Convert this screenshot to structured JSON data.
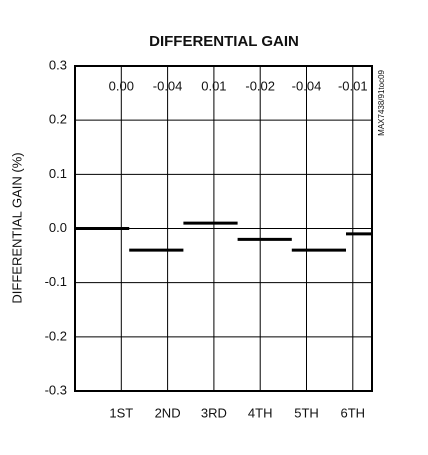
{
  "chart_data": {
    "type": "step",
    "title": "DIFFERENTIAL GAIN",
    "y_label": "DIFFERENTIAL GAIN (%)",
    "note": "MAX7438/91toc09",
    "categories": [
      "1ST",
      "2ND",
      "3RD",
      "4TH",
      "5TH",
      "6TH"
    ],
    "values": [
      0,
      -0.04,
      0.01,
      -0.02,
      -0.04,
      -0.01
    ],
    "value_labels": [
      "0.00",
      "-0.04",
      "0.01",
      "-0.02",
      "-0.04",
      "-0.01"
    ],
    "color": "#000000",
    "ylim": [
      -0.3,
      0.3
    ],
    "yticks": [
      -0.3,
      -0.2,
      -0.1,
      {
        "value": 0,
        "label": "0.0"
      },
      0.1,
      0.2,
      0.3
    ],
    "grid": true
  }
}
